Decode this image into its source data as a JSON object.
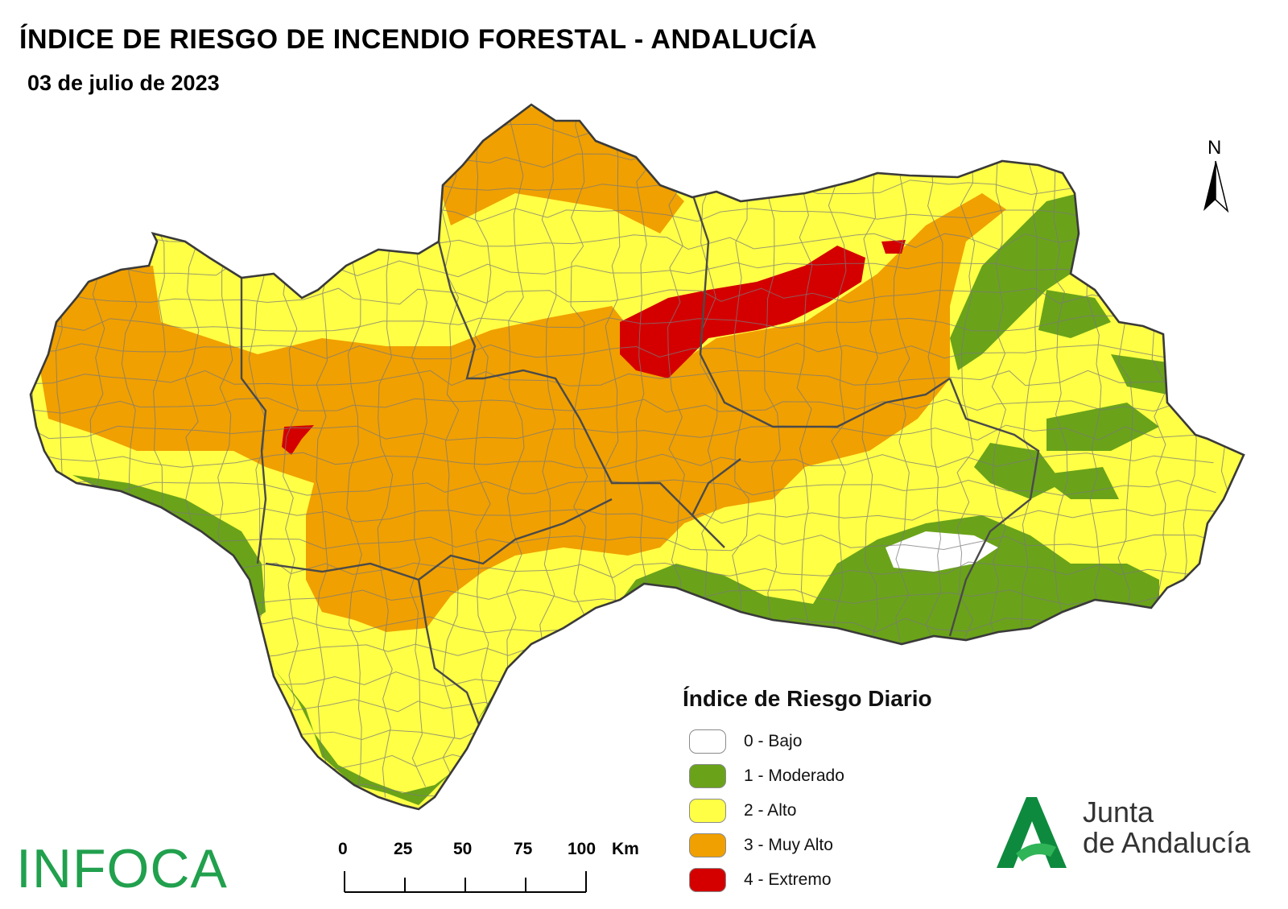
{
  "title": "ÍNDICE DE RIESGO DE INCENDIO FORESTAL - ANDALUCÍA",
  "date": "03 de julio de 2023",
  "north_label": "N",
  "legend": {
    "title": "Índice de Riesgo Diario",
    "items": [
      {
        "label": "0 - Bajo",
        "color": "#ffffff"
      },
      {
        "label": "1 - Moderado",
        "color": "#6aa319"
      },
      {
        "label": "2 - Alto",
        "color": "#ffff46"
      },
      {
        "label": "3 - Muy Alto",
        "color": "#f0a000"
      },
      {
        "label": "4 - Extremo",
        "color": "#d40000"
      }
    ]
  },
  "scale_bar": {
    "ticks": [
      "0",
      "25",
      "50",
      "75",
      "100"
    ],
    "unit": "Km"
  },
  "logos": {
    "infoca": "INFOCA",
    "junta_line1": "Junta",
    "junta_line2": "de Andalucía"
  },
  "colors": {
    "border": "#555555",
    "green_logo": "#21a04d"
  }
}
